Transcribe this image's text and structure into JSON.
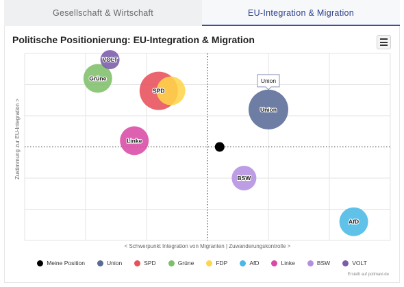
{
  "tabs": [
    {
      "label": "Gesellschaft & Wirtschaft",
      "active": false
    },
    {
      "label": "EU-Integration & Migration",
      "active": true
    }
  ],
  "menu_icon": "hamburger-menu-icon",
  "chart_data": {
    "type": "scatter",
    "title": "Politische Positionierung: EU-Integration & Migration",
    "xlabel": "< Schwerpunkt Integration von Migranten | Zuwanderungskontrolle >",
    "ylabel": "Zustimmung zur EU-Integration >",
    "xlim": [
      -3,
      3
    ],
    "ylim": [
      -3,
      3
    ],
    "grid": true,
    "tooltip": {
      "text": "Union",
      "series": "Union"
    },
    "legend_position": "bottom",
    "credits": "Erstellt auf pollmavi.de",
    "series": [
      {
        "name": "Meine Position",
        "color": "#000000",
        "x": 0.2,
        "y": 0,
        "r": 7,
        "label": ""
      },
      {
        "name": "Union",
        "color": "#5a6b96",
        "x": 1,
        "y": 1.2,
        "r": 29,
        "label": "Union"
      },
      {
        "name": "SPD",
        "color": "#e8505b",
        "x": -0.8,
        "y": 1.8,
        "r": 28,
        "label": "SPD"
      },
      {
        "name": "Grüne",
        "color": "#7fbf6a",
        "x": -1.8,
        "y": 2.2,
        "r": 21,
        "label": "Grüne"
      },
      {
        "name": "FDP",
        "color": "#ffd54a",
        "x": -0.6,
        "y": 1.8,
        "r": 21,
        "label": ""
      },
      {
        "name": "AfD",
        "color": "#4ab8e6",
        "x": 2.4,
        "y": -2.4,
        "r": 21,
        "label": "AfD"
      },
      {
        "name": "Linke",
        "color": "#d94aa6",
        "x": -1.2,
        "y": 0.2,
        "r": 21,
        "label": "Linke"
      },
      {
        "name": "BSW",
        "color": "#b48fe0",
        "x": 0.6,
        "y": -1,
        "r": 18,
        "label": "BSW"
      },
      {
        "name": "VOLT",
        "color": "#7a5ca8",
        "x": -1.6,
        "y": 2.8,
        "r": 14,
        "label": "VOLT"
      }
    ]
  }
}
